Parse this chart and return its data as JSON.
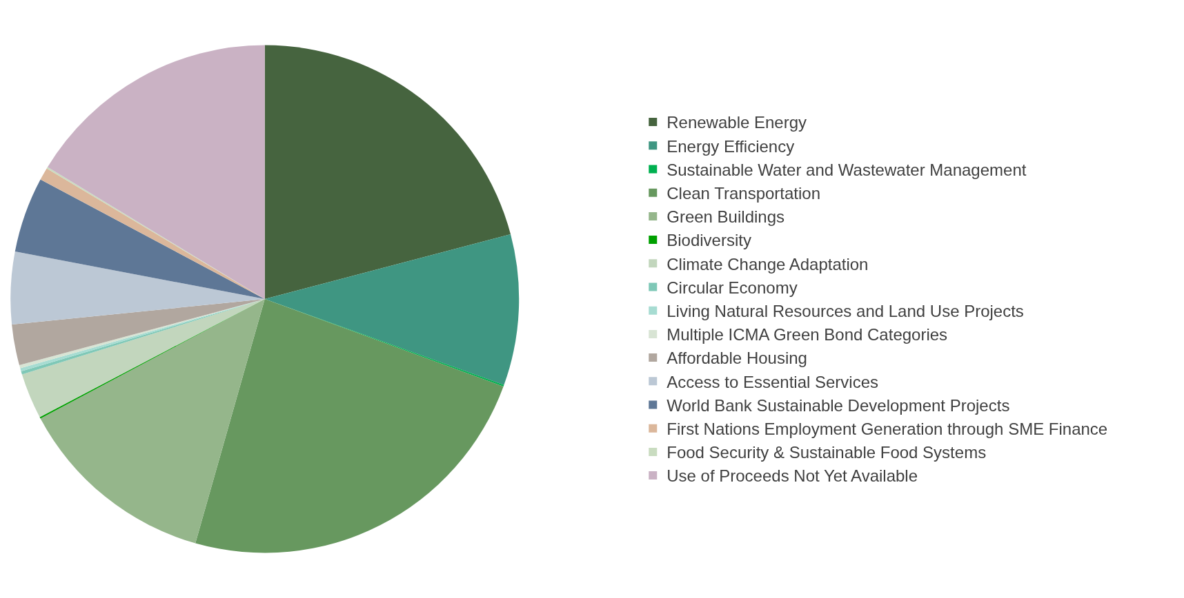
{
  "chart_data": {
    "type": "pie",
    "categories": [
      "Renewable Energy",
      "Energy Efficiency",
      "Sustainable Water and Wastewater Management",
      "Clean Transportation",
      "Green Buildings",
      "Biodiversity",
      "Climate Change Adaptation",
      "Circular Economy",
      "Living Natural Resources and Land Use Projects",
      "Multiple ICMA Green Bond Categories",
      "Affordable Housing",
      "Access to Essential Services",
      "World Bank Sustainable Development Projects",
      "First Nations Employment Generation through SME Finance",
      "Food Security & Sustainable Food Systems",
      "Use of Proceeds Not Yet Available"
    ],
    "values": [
      20.9,
      9.6,
      0.1,
      23.8,
      12.8,
      0.1,
      2.9,
      0.2,
      0.2,
      0.2,
      2.6,
      4.6,
      4.8,
      0.8,
      0.1,
      16.3
    ],
    "colors": [
      "#46643f",
      "#3f9682",
      "#00b050",
      "#67985f",
      "#95b68b",
      "#00a000",
      "#c2d6bd",
      "#7fc8b7",
      "#a7dcd2",
      "#d8e4d4",
      "#b1a79f",
      "#bcc8d5",
      "#5e7796",
      "#dbb79b",
      "#c9dcc0",
      "#cab2c4"
    ],
    "legend": "right"
  }
}
